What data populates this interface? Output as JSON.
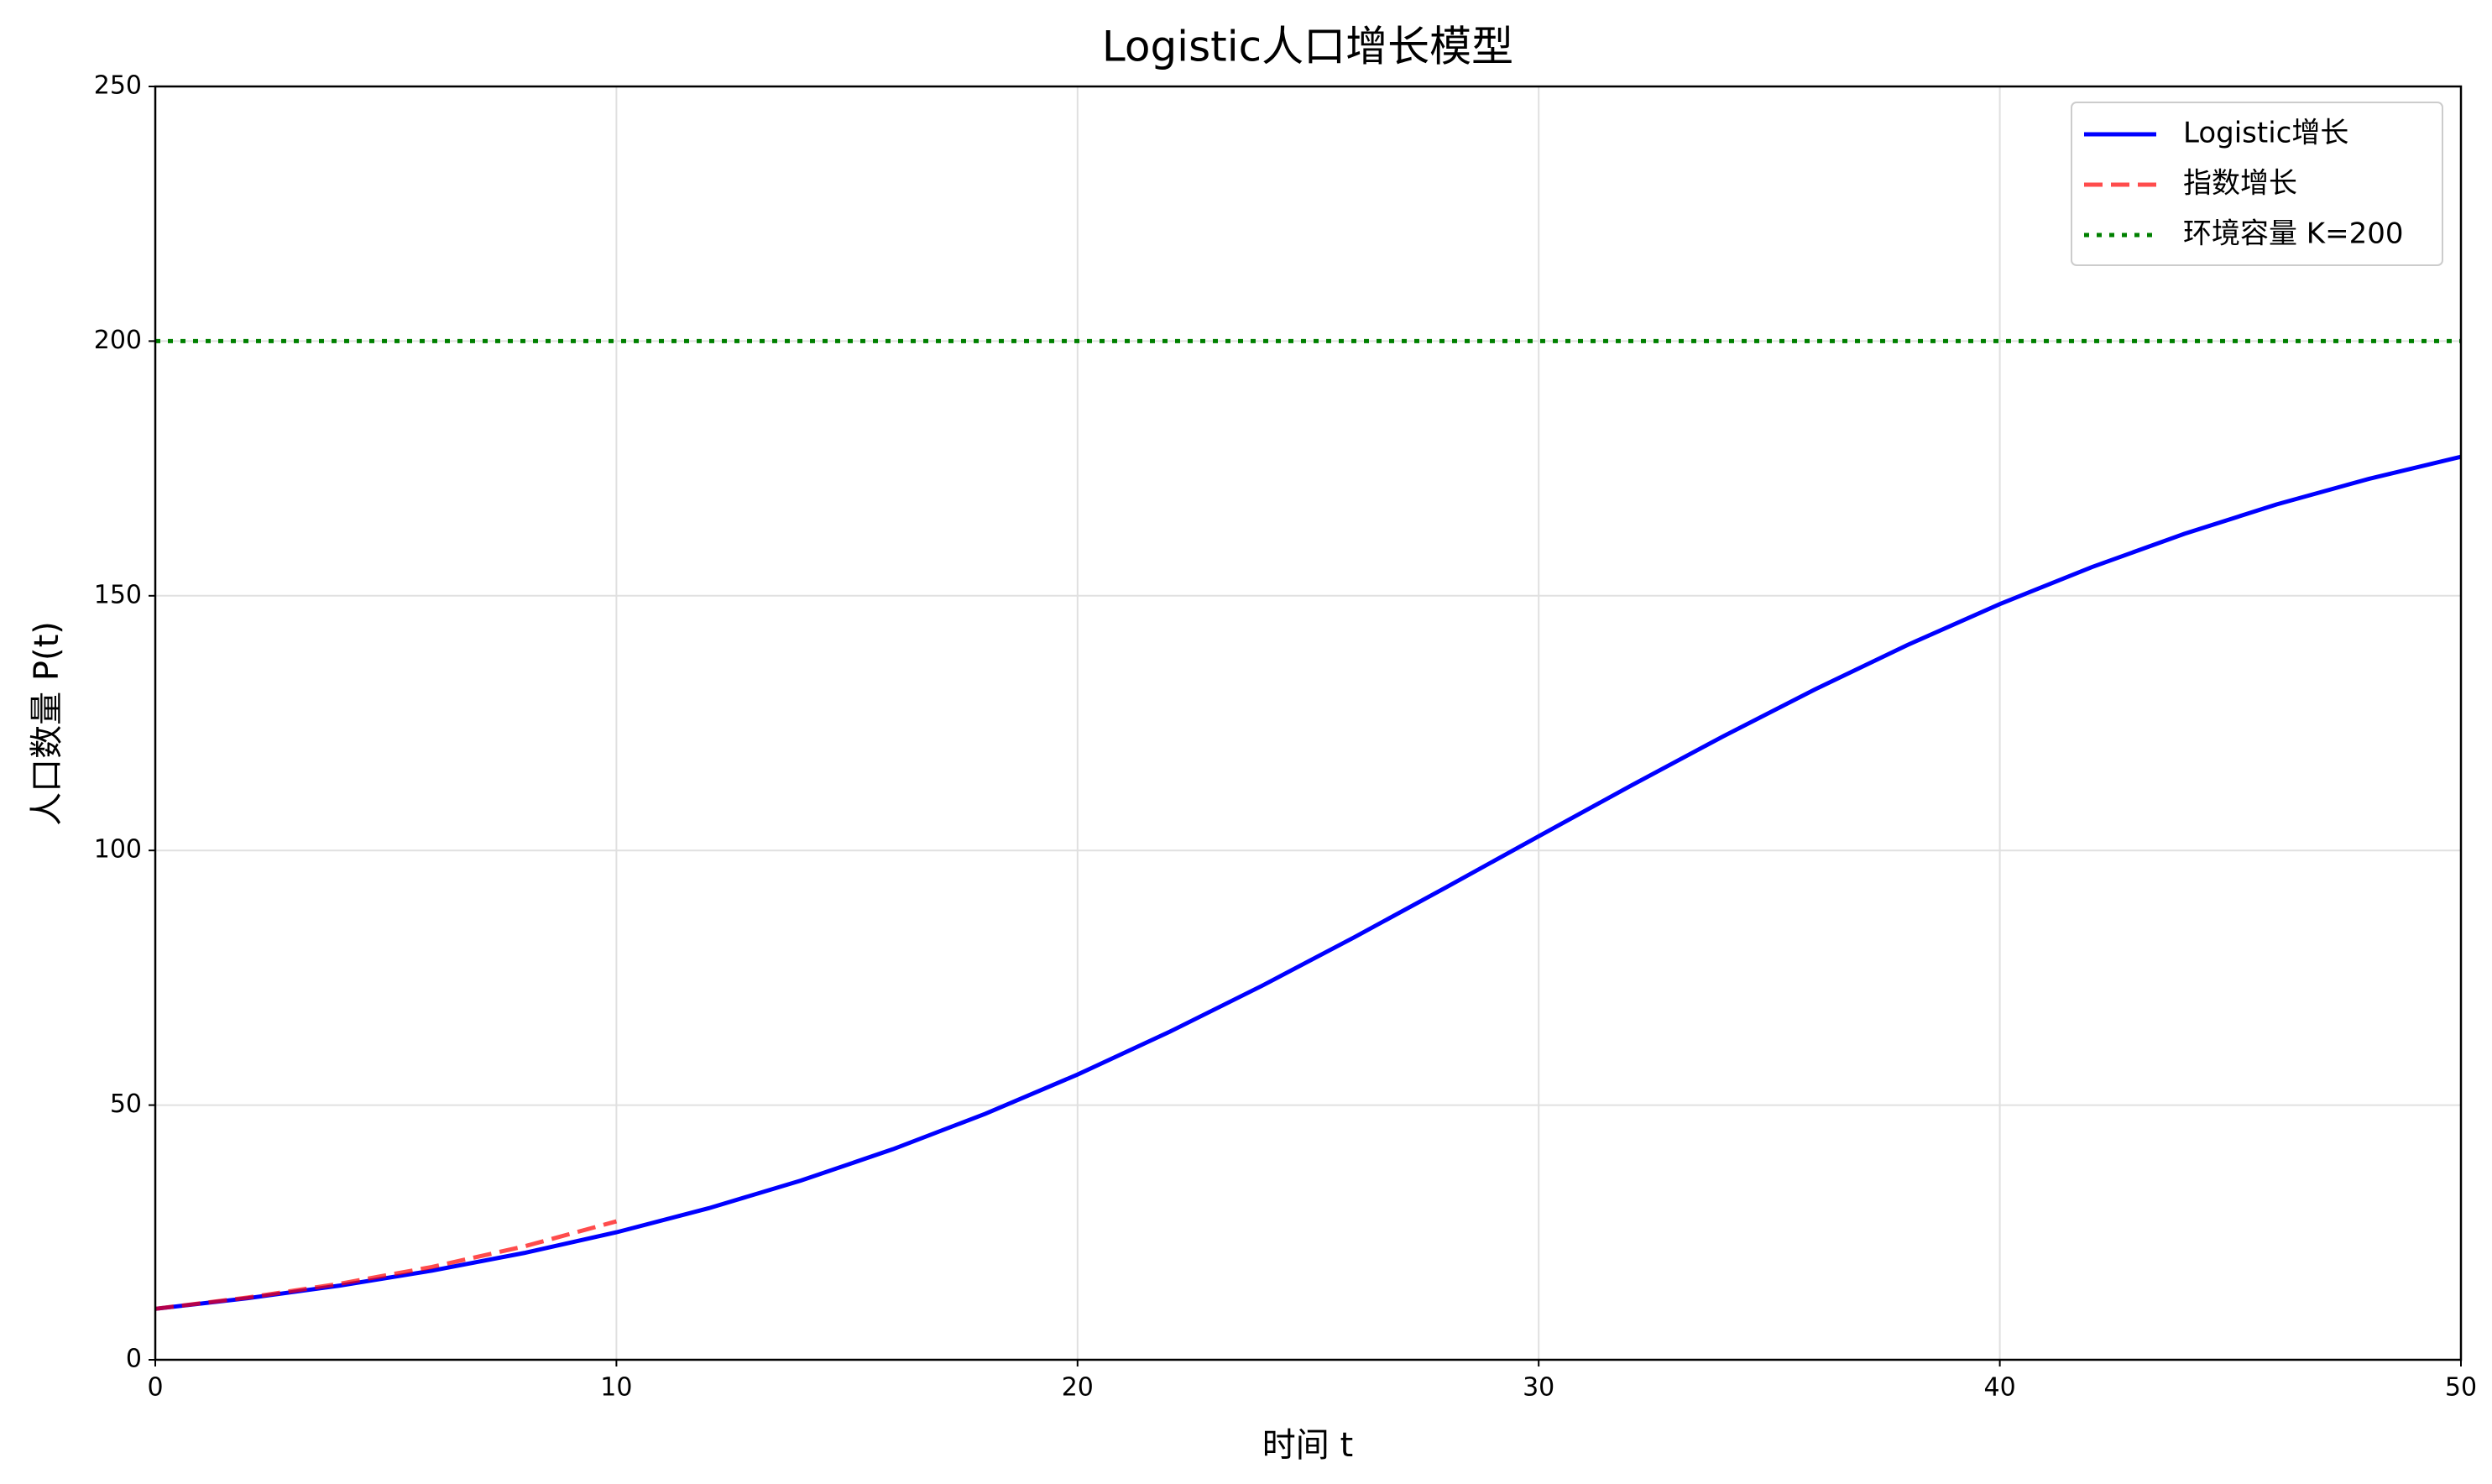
{
  "chart_data": {
    "type": "line",
    "title": "Logistic人口增长模型",
    "xlabel": "时间 t",
    "ylabel": "人口数量 P(t)",
    "series": [
      {
        "name": "Logistic增长",
        "color": "#0000ff",
        "linestyle": "solid",
        "x": [
          0,
          2,
          4,
          6,
          8,
          10,
          12,
          14,
          16,
          18,
          20,
          22,
          24,
          26,
          28,
          30,
          32,
          34,
          36,
          38,
          40,
          42,
          44,
          46,
          48,
          50
        ],
        "values": [
          10,
          12.08,
          14.56,
          17.5,
          20.97,
          25.03,
          29.75,
          35.18,
          41.36,
          48.3,
          56,
          64.41,
          73.43,
          82.95,
          92.8,
          102.78,
          112.71,
          122.4,
          131.66,
          140.35,
          148.37,
          155.64,
          162.16,
          167.93,
          172.95,
          177.3
        ]
      },
      {
        "name": "指数增长",
        "color": "#ff0000",
        "alpha": 0.7,
        "linestyle": "dashed",
        "x": [
          0,
          2,
          4,
          6,
          8,
          10
        ],
        "values": [
          10,
          12.21,
          14.92,
          18.22,
          22.26,
          27.18
        ]
      },
      {
        "name": "环境容量 K=200",
        "color": "#008000",
        "linestyle": "dotted",
        "x": [
          0,
          50
        ],
        "values": [
          200,
          200
        ]
      }
    ],
    "xlim": [
      0,
      50
    ],
    "xticks": [
      0,
      10,
      20,
      30,
      40,
      50
    ],
    "ylim": [
      0,
      250
    ],
    "yticks": [
      0,
      50,
      100,
      150,
      200,
      250
    ],
    "grid": true,
    "legend": "upper right"
  }
}
